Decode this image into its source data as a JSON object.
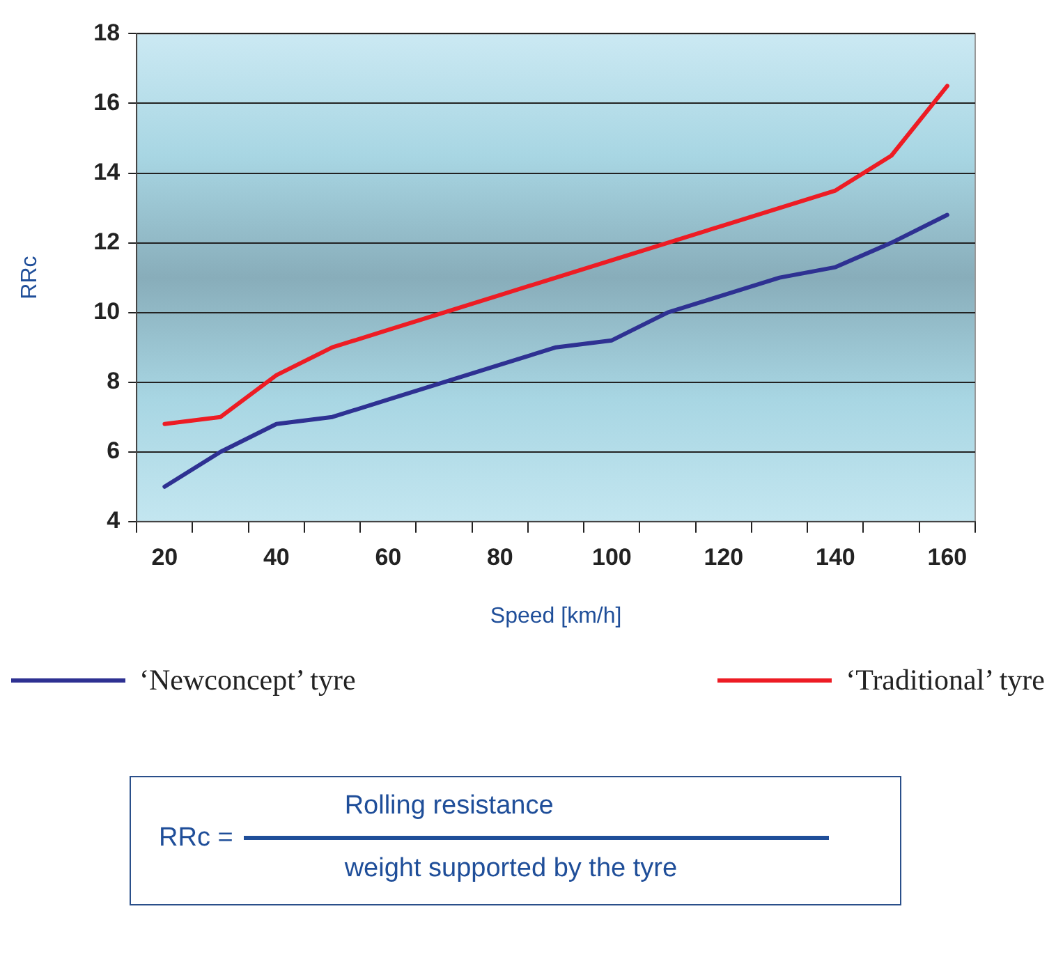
{
  "chart_data": {
    "type": "line",
    "xlabel": "Speed [km/h]",
    "ylabel": "RRc",
    "categories": [
      "20",
      null,
      "40",
      null,
      "60",
      null,
      "80",
      null,
      "100",
      null,
      "120",
      null,
      "140",
      null,
      "160"
    ],
    "series": [
      {
        "name": "‘Newconcept’ tyre",
        "color": "#2e3192",
        "values": [
          5.0,
          6.0,
          6.8,
          7.0,
          7.5,
          8.0,
          8.5,
          9.0,
          9.2,
          10.0,
          10.5,
          11.0,
          11.3,
          12.0,
          12.8
        ]
      },
      {
        "name": "‘Traditional’ tyre",
        "color": "#ed1c24",
        "values": [
          6.8,
          7.0,
          8.2,
          9.0,
          9.5,
          10.0,
          10.5,
          11.0,
          11.5,
          12.0,
          12.5,
          13.0,
          13.5,
          14.5,
          16.5
        ]
      }
    ],
    "ylim": [
      4,
      18
    ],
    "yticks": [
      4,
      6,
      8,
      10,
      12,
      14,
      16,
      18
    ],
    "grid": "y",
    "legend": "bottom",
    "marker": "none",
    "line_style": "solid",
    "annotations": [
      "RRc =",
      "Rolling resistance",
      "weight supported by the tyre"
    ]
  }
}
